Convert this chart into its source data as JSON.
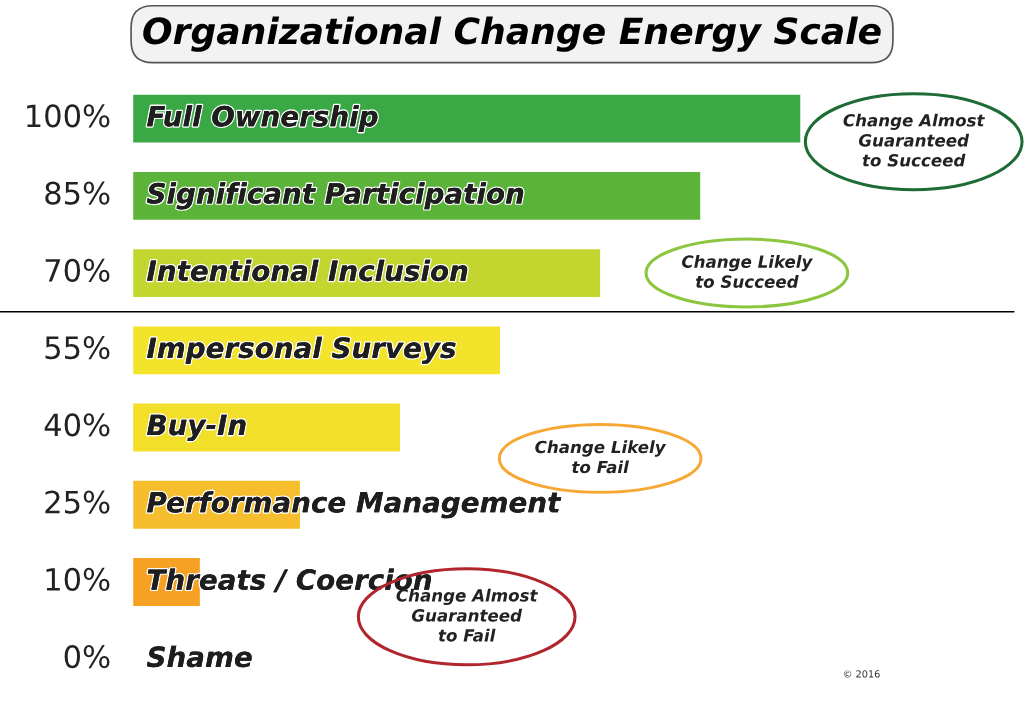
{
  "chart_data": {
    "type": "bar",
    "orientation": "horizontal",
    "title": "Organizational Change Energy Scale",
    "categories": [
      "Full Ownership",
      "Significant Participation",
      "Intentional Inclusion",
      "Impersonal Surveys",
      "Buy-In",
      "Performance Management",
      "Threats / Coercion",
      "Shame"
    ],
    "values": [
      100,
      85,
      70,
      55,
      40,
      25,
      10,
      0
    ],
    "value_labels": [
      "100%",
      "85%",
      "70%",
      "55%",
      "40%",
      "25%",
      "10%",
      "0%"
    ],
    "colors": [
      "#3aa845",
      "#5cb33a",
      "#c3d52f",
      "#f3e32b",
      "#f2df2a",
      "#f6bd2c",
      "#f5a124",
      "#f07c2b"
    ],
    "annotations": [
      "Change Almost\nGuaranteed\nto Succeed",
      "Change Likely\nto Succeed",
      "Change Likely\nto Fail",
      "Change Almost\nGuaranteed\nto Fail",
      "© 2016"
    ],
    "legend": false
  }
}
